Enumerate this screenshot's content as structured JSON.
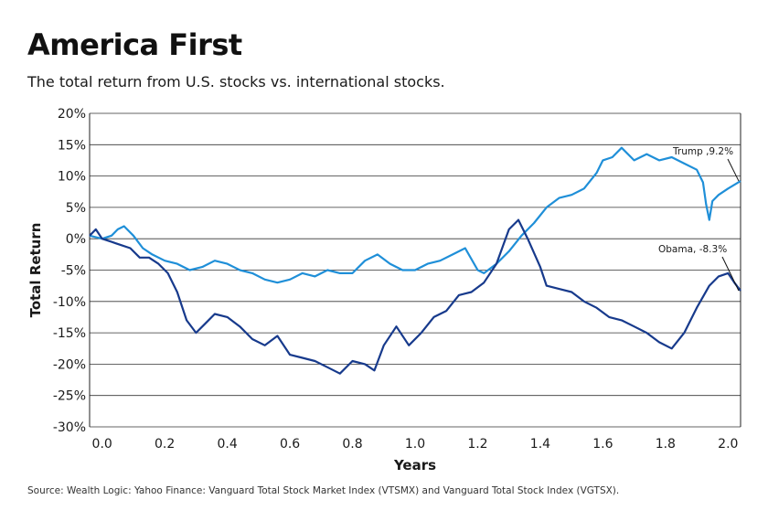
{
  "header": {
    "title": "America First",
    "subtitle": "The total return from U.S. stocks vs. international stocks."
  },
  "footer": {
    "source": "Source: Wealth Logic: Yahoo Finance: Vanguard Total Stock Market Index (VTSMX) and Vanguard Total Stock Index (VGTSX)."
  },
  "colors": {
    "trump": "#1f8fd8",
    "obama": "#173a8c",
    "grid": "#333333"
  },
  "chart_data": {
    "type": "line",
    "title": "America First",
    "subtitle": "The total return from U.S. stocks vs. international stocks.",
    "xlabel": "Years",
    "ylabel": "Total Return",
    "xlim": [
      -0.04,
      2.04
    ],
    "ylim": [
      -30,
      20
    ],
    "xticks": [
      0.0,
      0.2,
      0.4,
      0.6,
      0.8,
      1.0,
      1.2,
      1.4,
      1.6,
      1.8,
      2.0
    ],
    "xtick_labels": [
      "0.0",
      "0.2",
      "0.4",
      "0.6",
      "0.8",
      "1.0",
      "1.2",
      "1.4",
      "1.6",
      "1.8",
      "2.0"
    ],
    "yticks": [
      20,
      15,
      10,
      5,
      0,
      -5,
      -10,
      -15,
      -20,
      -25,
      -30
    ],
    "ytick_labels": [
      "20%",
      "15%",
      "10%",
      "5%",
      "0%",
      "-5%",
      "-10%",
      "-15%",
      "-20%",
      "-25%",
      "-30%"
    ],
    "grid": "horizontal",
    "series": [
      {
        "name": "Trump",
        "color": "#1f8fd8",
        "x": [
          -0.04,
          0.0,
          0.03,
          0.05,
          0.07,
          0.1,
          0.13,
          0.16,
          0.2,
          0.24,
          0.28,
          0.32,
          0.36,
          0.4,
          0.44,
          0.48,
          0.52,
          0.56,
          0.6,
          0.64,
          0.68,
          0.72,
          0.76,
          0.8,
          0.84,
          0.88,
          0.92,
          0.96,
          1.0,
          1.04,
          1.08,
          1.12,
          1.16,
          1.2,
          1.22,
          1.26,
          1.3,
          1.34,
          1.38,
          1.42,
          1.46,
          1.5,
          1.54,
          1.58,
          1.6,
          1.63,
          1.66,
          1.7,
          1.74,
          1.78,
          1.82,
          1.86,
          1.9,
          1.92,
          1.93,
          1.94,
          1.95,
          1.97,
          2.0,
          2.04
        ],
        "y": [
          0.5,
          0.0,
          0.5,
          1.5,
          2.0,
          0.5,
          -1.5,
          -2.5,
          -3.5,
          -4.0,
          -5.0,
          -4.5,
          -3.5,
          -4.0,
          -5.0,
          -5.5,
          -6.5,
          -7.0,
          -6.5,
          -5.5,
          -6.0,
          -5.0,
          -5.5,
          -5.5,
          -3.5,
          -2.5,
          -4.0,
          -5.0,
          -5.0,
          -4.0,
          -3.5,
          -2.5,
          -1.5,
          -5.0,
          -5.5,
          -4.0,
          -2.0,
          0.5,
          2.5,
          5.0,
          6.5,
          7.0,
          8.0,
          10.5,
          12.5,
          13.0,
          14.5,
          12.5,
          13.5,
          12.5,
          13.0,
          12.0,
          11.0,
          9.0,
          5.5,
          3.0,
          6.0,
          7.0,
          8.0,
          9.2
        ]
      },
      {
        "name": "Obama",
        "color": "#173a8c",
        "x": [
          -0.04,
          -0.02,
          0.0,
          0.03,
          0.06,
          0.09,
          0.12,
          0.15,
          0.18,
          0.21,
          0.24,
          0.27,
          0.3,
          0.33,
          0.36,
          0.4,
          0.44,
          0.48,
          0.52,
          0.56,
          0.6,
          0.64,
          0.68,
          0.72,
          0.76,
          0.8,
          0.84,
          0.87,
          0.9,
          0.94,
          0.98,
          1.02,
          1.06,
          1.1,
          1.14,
          1.18,
          1.22,
          1.26,
          1.3,
          1.33,
          1.36,
          1.4,
          1.42,
          1.46,
          1.5,
          1.54,
          1.58,
          1.62,
          1.66,
          1.7,
          1.74,
          1.78,
          1.82,
          1.86,
          1.9,
          1.94,
          1.97,
          2.0,
          2.02,
          2.04
        ],
        "y": [
          0.5,
          1.5,
          0.0,
          -0.5,
          -1.0,
          -1.5,
          -3.0,
          -3.0,
          -4.0,
          -5.5,
          -8.5,
          -13.0,
          -15.0,
          -13.5,
          -12.0,
          -12.5,
          -14.0,
          -16.0,
          -17.0,
          -15.5,
          -18.5,
          -19.0,
          -19.5,
          -20.5,
          -21.5,
          -19.5,
          -20.0,
          -21.0,
          -17.0,
          -14.0,
          -17.0,
          -15.0,
          -12.5,
          -11.5,
          -9.0,
          -8.5,
          -7.0,
          -4.0,
          1.5,
          3.0,
          0.0,
          -4.5,
          -7.5,
          -8.0,
          -8.5,
          -10.0,
          -11.0,
          -12.5,
          -13.0,
          -14.0,
          -15.0,
          -16.5,
          -17.5,
          -15.0,
          -11.0,
          -7.5,
          -6.0,
          -5.5,
          -7.0,
          -8.3
        ]
      }
    ],
    "annotations": [
      {
        "text": "Trump ,9.2%",
        "x": 2.04,
        "y": 9.2
      },
      {
        "text": "Obama, -8.3%",
        "x": 2.04,
        "y": -8.3
      }
    ]
  }
}
